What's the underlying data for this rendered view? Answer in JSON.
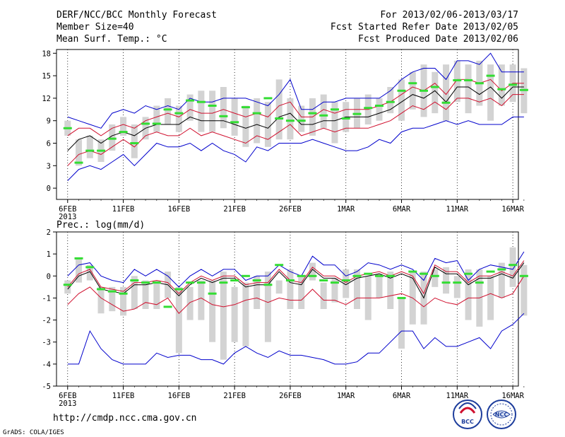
{
  "header": {
    "line1_left": "DERF/NCC/BCC Monthly Forecast",
    "line2_left": "Member Size=40",
    "line3_left": "Mean Surf. Temp.: °C",
    "line1_right": "For 2013/02/06-2013/03/17",
    "line2_right": "Fcst Started Refer Date 2013/02/05",
    "line3_right": "Fcst Produced Date 2013/02/06"
  },
  "footer": {
    "url": "http://cmdp.ncc.cma.gov.cn",
    "credit": "GrADS: COLA/IGES",
    "logo_left": "BCC",
    "logo_right": "NCC"
  },
  "colors": {
    "box": "#d3d3d3",
    "median": "#000000",
    "inner": "#d0102e",
    "outer": "#0000cc",
    "obs": "#33dd33",
    "axis": "#000000",
    "grid": "#000000"
  },
  "chart_data": [
    {
      "type": "line",
      "title": "Mean Surf. Temp.: °C",
      "xlabel": "",
      "ylabel": "°C",
      "x_tick_labels": [
        "6FEB",
        "11FEB",
        "16FEB",
        "21FEB",
        "26FEB",
        "1MAR",
        "6MAR",
        "11MAR",
        "16MAR"
      ],
      "x_tick_days": [
        1,
        6,
        11,
        16,
        21,
        26,
        31,
        36,
        41
      ],
      "x_year_label": "2013",
      "xlim": [
        0,
        41.5
      ],
      "ylim": [
        -1.5,
        18.5
      ],
      "yticks": [
        0,
        3,
        6,
        9,
        12,
        15,
        18
      ],
      "days": [
        1,
        2,
        3,
        4,
        5,
        6,
        7,
        8,
        9,
        10,
        11,
        12,
        13,
        14,
        15,
        16,
        17,
        18,
        19,
        20,
        21,
        22,
        23,
        24,
        25,
        26,
        27,
        28,
        29,
        30,
        31,
        32,
        33,
        34,
        35,
        36,
        37,
        38,
        39,
        40,
        41,
        42
      ],
      "box_low": [
        7.0,
        3.0,
        4.0,
        3.5,
        5.0,
        7.0,
        4.0,
        6.5,
        7.5,
        8.5,
        7.5,
        9.0,
        7.5,
        7.5,
        8.0,
        7.0,
        5.5,
        6.0,
        5.5,
        6.5,
        6.5,
        7.5,
        7.0,
        8.0,
        6.0,
        7.5,
        8.0,
        8.5,
        9.0,
        10.0,
        9.0,
        10.5,
        9.5,
        10.0,
        9.0,
        11.5,
        10.0,
        11.0,
        9.0,
        11.0,
        11.5,
        10.0
      ],
      "box_high": [
        9.0,
        6.5,
        7.0,
        6.5,
        8.5,
        9.5,
        8.5,
        9.5,
        11.0,
        12.0,
        11.0,
        12.5,
        13.0,
        13.0,
        13.5,
        12.0,
        11.0,
        12.0,
        11.5,
        14.5,
        12.0,
        11.0,
        12.0,
        12.5,
        11.5,
        11.5,
        12.0,
        12.5,
        12.0,
        13.5,
        14.5,
        15.5,
        16.5,
        15.5,
        16.5,
        17.0,
        16.5,
        17.0,
        16.5,
        16.5,
        16.5,
        16.0
      ],
      "outer_low": [
        1.0,
        2.5,
        3.0,
        2.5,
        3.5,
        4.5,
        3.0,
        4.5,
        6.0,
        5.5,
        5.5,
        6.0,
        5.0,
        6.0,
        5.0,
        4.5,
        3.5,
        5.5,
        5.0,
        6.0,
        6.0,
        6.0,
        6.5,
        6.0,
        5.5,
        5.0,
        5.0,
        5.5,
        6.5,
        6.0,
        7.5,
        8.0,
        8.0,
        8.5,
        9.0,
        8.5,
        9.0,
        8.5,
        8.5,
        8.5,
        9.5,
        9.5
      ],
      "outer_high": [
        9.5,
        9.0,
        8.5,
        8.0,
        10.0,
        10.5,
        10.0,
        11.0,
        10.5,
        11.0,
        10.5,
        12.0,
        11.5,
        11.5,
        12.0,
        12.0,
        12.0,
        11.5,
        11.0,
        12.5,
        14.5,
        10.5,
        10.5,
        11.5,
        11.5,
        12.0,
        12.0,
        12.0,
        12.0,
        13.0,
        14.5,
        15.5,
        16.0,
        16.0,
        14.5,
        17.0,
        17.0,
        16.5,
        18.0,
        15.5,
        15.5,
        15.5
      ],
      "inner_low": [
        3.0,
        4.5,
        5.0,
        4.5,
        5.5,
        6.5,
        5.5,
        7.0,
        7.5,
        7.0,
        7.0,
        8.0,
        7.0,
        7.5,
        7.0,
        6.5,
        6.0,
        7.0,
        6.5,
        7.5,
        8.5,
        7.0,
        7.5,
        8.0,
        7.5,
        8.0,
        8.0,
        8.0,
        8.5,
        9.0,
        10.0,
        11.0,
        10.5,
        11.5,
        10.5,
        12.0,
        12.0,
        11.5,
        12.0,
        11.0,
        12.5,
        12.5
      ],
      "inner_high": [
        7.0,
        8.0,
        8.0,
        7.0,
        8.0,
        8.5,
        8.0,
        9.0,
        9.5,
        10.0,
        9.5,
        10.5,
        10.0,
        10.0,
        10.5,
        10.0,
        9.5,
        10.0,
        9.5,
        11.0,
        11.5,
        9.5,
        9.5,
        10.5,
        10.0,
        10.5,
        10.5,
        10.5,
        11.0,
        11.5,
        12.5,
        13.5,
        13.0,
        14.0,
        12.5,
        14.5,
        14.5,
        14.0,
        14.5,
        13.0,
        14.0,
        14.0
      ],
      "median": [
        5.0,
        6.5,
        7.0,
        6.0,
        7.0,
        7.5,
        7.0,
        8.0,
        8.5,
        8.5,
        8.5,
        9.5,
        9.0,
        9.0,
        9.0,
        8.5,
        8.0,
        8.5,
        8.0,
        9.5,
        10.0,
        8.5,
        8.5,
        9.0,
        9.0,
        9.5,
        9.5,
        9.5,
        10.0,
        10.5,
        11.5,
        12.5,
        12.0,
        13.0,
        11.5,
        13.5,
        13.5,
        12.5,
        13.5,
        12.0,
        13.5,
        13.5
      ],
      "observed": [
        8.0,
        3.4,
        5.0,
        5.0,
        6.6,
        7.5,
        6.0,
        8.6,
        8.6,
        10.5,
        10.0,
        11.7,
        11.5,
        11.0,
        9.6,
        8.8,
        10.8,
        10.0,
        12.0,
        9.3,
        9.0,
        9.0,
        10.0,
        9.7,
        10.5,
        9.3,
        9.9,
        10.7,
        11.0,
        11.5,
        13.0,
        14.0,
        13.0,
        13.5,
        11.4,
        14.4,
        14.4,
        14.0,
        15.0,
        13.2,
        13.8,
        13.1
      ]
    },
    {
      "type": "line",
      "title": "Prec.: log(mm/d)",
      "xlabel": "",
      "ylabel": "log(mm/d)",
      "x_tick_labels": [
        "6FEB",
        "11FEB",
        "16FEB",
        "21FEB",
        "26FEB",
        "1MAR",
        "6MAR",
        "11MAR",
        "16MAR"
      ],
      "x_tick_days": [
        1,
        6,
        11,
        16,
        21,
        26,
        31,
        36,
        41
      ],
      "x_year_label": "2013",
      "xlim": [
        0,
        41.5
      ],
      "ylim": [
        -5,
        2
      ],
      "yticks": [
        -5,
        -4,
        -3,
        -2,
        -1,
        0,
        1,
        2
      ],
      "days": [
        1,
        2,
        3,
        4,
        5,
        6,
        7,
        8,
        9,
        10,
        11,
        12,
        13,
        14,
        15,
        16,
        17,
        18,
        19,
        20,
        21,
        22,
        23,
        24,
        25,
        26,
        27,
        28,
        29,
        30,
        31,
        32,
        33,
        34,
        35,
        36,
        37,
        38,
        39,
        40,
        41,
        42
      ],
      "box_low": [
        -0.8,
        -0.3,
        -0.2,
        -1.7,
        -1.6,
        -1.8,
        -1.5,
        -1.5,
        -1.5,
        -1.0,
        -3.5,
        -2.0,
        -2.0,
        -3.0,
        -3.8,
        -3.0,
        -3.2,
        -1.5,
        -3.0,
        -0.8,
        -1.5,
        -1.5,
        -0.2,
        -1.5,
        -1.2,
        -1.0,
        -1.5,
        -2.0,
        -1.0,
        -1.5,
        -3.3,
        -2.2,
        -2.2,
        -0.5,
        -0.8,
        -1.0,
        -2.0,
        -2.3,
        -2.0,
        -1.0,
        -0.5,
        -1.8
      ],
      "box_high": [
        -0.2,
        0.8,
        0.5,
        -0.5,
        -0.5,
        -0.5,
        0.0,
        -0.2,
        -0.2,
        0.2,
        -0.5,
        -0.5,
        -0.2,
        -0.2,
        0.2,
        -0.5,
        -0.3,
        0.0,
        0.2,
        -0.2,
        0.3,
        0.0,
        0.6,
        -0.3,
        -0.1,
        0.3,
        0.3,
        0.0,
        0.1,
        0.2,
        -1.0,
        0.2,
        0.2,
        0.3,
        0.4,
        0.0,
        0.3,
        0.3,
        0.0,
        0.6,
        1.3,
        0.5
      ],
      "outer_low": [
        -4.0,
        -4.0,
        -2.5,
        -3.3,
        -3.8,
        -4.0,
        -4.0,
        -4.0,
        -3.5,
        -3.7,
        -3.6,
        -3.6,
        -3.8,
        -3.8,
        -4.0,
        -3.5,
        -3.2,
        -3.5,
        -3.7,
        -3.4,
        -3.6,
        -3.6,
        -3.7,
        -3.8,
        -4.0,
        -4.0,
        -3.9,
        -3.5,
        -3.5,
        -3.0,
        -2.5,
        -2.5,
        -3.3,
        -2.8,
        -3.2,
        -3.2,
        -3.0,
        -2.8,
        -3.3,
        -2.5,
        -2.2,
        -1.7
      ],
      "outer_high": [
        0.0,
        0.5,
        0.6,
        0.0,
        -0.2,
        -0.3,
        0.3,
        0.0,
        0.3,
        0.0,
        -0.5,
        0.0,
        0.3,
        0.0,
        0.3,
        0.3,
        -0.2,
        0.0,
        0.0,
        0.5,
        0.2,
        0.0,
        0.9,
        0.5,
        0.5,
        0.0,
        0.2,
        0.6,
        0.5,
        0.3,
        0.5,
        0.3,
        -0.2,
        0.8,
        0.6,
        0.7,
        -0.2,
        0.3,
        0.5,
        0.4,
        0.3,
        1.1
      ],
      "inner_low": [
        -1.3,
        -0.8,
        -0.5,
        -1.0,
        -1.3,
        -1.6,
        -1.5,
        -1.2,
        -1.3,
        -1.0,
        -1.7,
        -1.2,
        -1.0,
        -1.3,
        -1.4,
        -1.3,
        -1.1,
        -1.0,
        -1.2,
        -1.0,
        -1.1,
        -1.1,
        -0.6,
        -1.1,
        -1.1,
        -1.3,
        -1.0,
        -1.0,
        -1.0,
        -0.9,
        -0.8,
        -1.0,
        -1.4,
        -1.0,
        -1.2,
        -1.3,
        -1.0,
        -1.0,
        -0.8,
        -1.0,
        -0.8,
        0.0
      ],
      "inner_high": [
        -0.5,
        0.1,
        0.3,
        -0.5,
        -0.6,
        -0.7,
        -0.3,
        -0.3,
        -0.2,
        -0.3,
        -0.8,
        -0.3,
        0.0,
        -0.2,
        0.0,
        0.0,
        -0.4,
        -0.3,
        -0.3,
        0.3,
        -0.2,
        -0.3,
        0.4,
        0.0,
        0.0,
        -0.3,
        0.0,
        0.1,
        0.2,
        0.0,
        0.2,
        0.0,
        -0.8,
        0.5,
        0.2,
        0.2,
        -0.3,
        0.0,
        0.0,
        0.2,
        0.0,
        0.7
      ],
      "median": [
        -0.6,
        0.0,
        0.2,
        -0.6,
        -0.7,
        -0.8,
        -0.4,
        -0.4,
        -0.3,
        -0.4,
        -0.9,
        -0.4,
        -0.1,
        -0.3,
        -0.1,
        -0.1,
        -0.5,
        -0.4,
        -0.4,
        0.2,
        -0.3,
        -0.4,
        0.3,
        -0.1,
        -0.1,
        -0.4,
        -0.1,
        0.0,
        0.1,
        -0.1,
        0.1,
        -0.1,
        -1.0,
        0.4,
        0.1,
        0.1,
        -0.4,
        -0.1,
        -0.1,
        0.1,
        -0.1,
        0.6
      ],
      "observed": [
        -0.4,
        0.8,
        0.4,
        -0.6,
        -0.7,
        -0.8,
        -0.2,
        -0.3,
        -0.3,
        -1.4,
        -0.6,
        -0.3,
        -0.3,
        -0.8,
        -0.3,
        -0.2,
        0.0,
        -0.2,
        -0.4,
        0.5,
        -0.2,
        0.0,
        0.0,
        -0.2,
        -0.3,
        -0.2,
        0.0,
        0.1,
        0.0,
        0.0,
        -1.0,
        0.2,
        0.1,
        0.0,
        -0.3,
        -0.3,
        0.1,
        -0.3,
        0.2,
        0.3,
        0.5,
        0.0
      ]
    }
  ]
}
